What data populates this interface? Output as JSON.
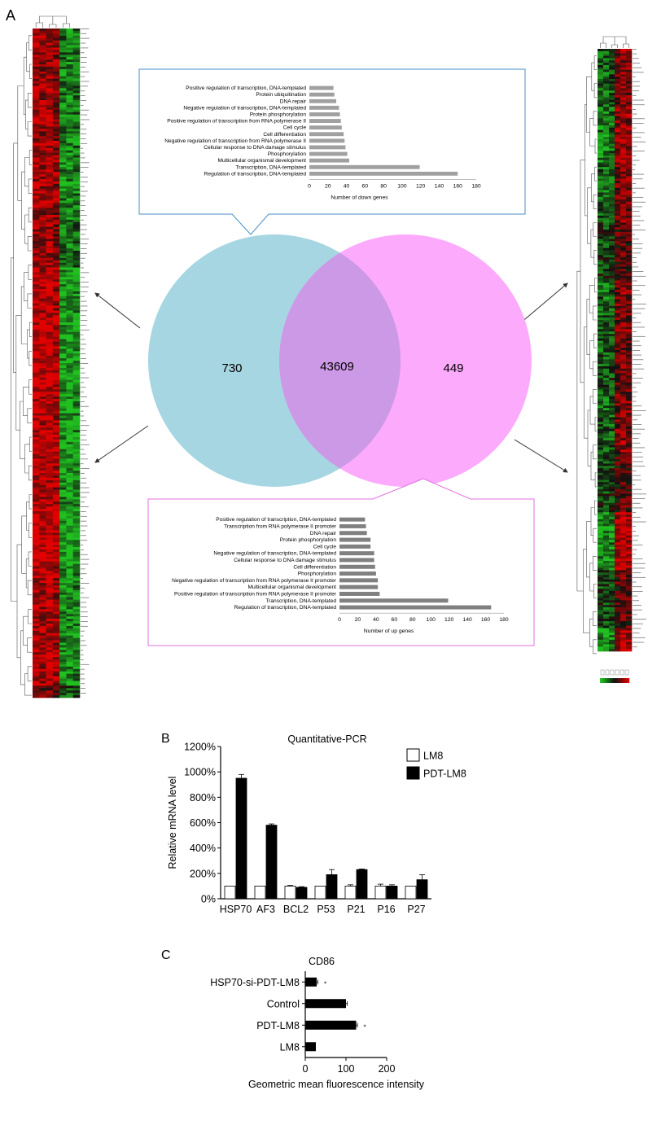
{
  "panels": {
    "a": "A",
    "b": "B",
    "c": "C"
  },
  "heatmap_colors": {
    "high": "#e00000",
    "low": "#20c020",
    "mid": "#101010"
  },
  "chart_data": [
    {
      "id": "venn",
      "type": "venn",
      "sets": [
        {
          "value": "730",
          "color": "#a6d6e2"
        },
        {
          "value": "449",
          "color": "#fcaafc"
        }
      ],
      "intersection": {
        "value": "43609",
        "color": "#cc99e6"
      }
    },
    {
      "id": "down-genes",
      "type": "bar",
      "orientation": "horizontal",
      "categories": [
        "Positive regulation of transcription, DNA-templated",
        "Protein ubiquitination",
        "DNA repair",
        "Negative regulation of transcription, DNA-templated",
        "Protein phosphorylation",
        "Positive regulation of transcription from RNA polymerase II",
        "Cell cycle",
        "Cell differentiation",
        "Negative regulation of transcription from RNA polymerase II",
        "Cellular response to DNA damage stimulus",
        "Phosphorylation",
        "Multicellular organismal development",
        "Transcription, DNA-templated",
        "Regulation of transcription, DNA-templated"
      ],
      "values": [
        26,
        27,
        29,
        32,
        33,
        34,
        35,
        37,
        38,
        39,
        41,
        43,
        119,
        160
      ],
      "xlabel": "Number of down genes",
      "xlim": [
        0,
        180
      ],
      "xticks": [
        0,
        20,
        40,
        60,
        80,
        100,
        120,
        140,
        160,
        180
      ],
      "bar_color": "#a0a0a0",
      "border_color": "#4a8fc8"
    },
    {
      "id": "up-genes",
      "type": "bar",
      "orientation": "horizontal",
      "categories": [
        "Positive regulation of transcription, DNA-templated",
        "Transcription from RNA polymerase II promoter",
        "DNA repair",
        "Protein phosphorylation",
        "Cell cycle",
        "Negative regulation of transcription, DNA-templated",
        "Cellular response to DNA damage stimulus",
        "Cell differentiation",
        "Phosphorylation",
        "Negative regulation of transcription from RNA polymerase II promoter",
        "Multicellular organismal development",
        "Positive regulation of transcription from RNA polymerase II promoter",
        "Transcription, DNA-templated",
        "Regulation of transcription, DNA-templated"
      ],
      "values": [
        28,
        29,
        30,
        34,
        34,
        38,
        38,
        39,
        40,
        42,
        42,
        44,
        119,
        166
      ],
      "xlabel": "Number of up genes",
      "xlim": [
        0,
        180
      ],
      "xticks": [
        0,
        20,
        40,
        60,
        80,
        100,
        120,
        140,
        160,
        180
      ],
      "bar_color": "#808080",
      "border_color": "#e070e0"
    },
    {
      "id": "qpcr",
      "type": "bar",
      "title": "Quantitative-PCR",
      "ylabel": "Relative mRNA level",
      "categories": [
        "HSP70",
        "AF3",
        "BCL2",
        "P53",
        "P21",
        "P16",
        "P27"
      ],
      "ylim": [
        0,
        1200
      ],
      "yticks": [
        "0%",
        "200%",
        "400%",
        "600%",
        "800%",
        "1000%",
        "1200%"
      ],
      "legend_position": "top-right",
      "series": [
        {
          "name": "LM8",
          "color": "#ffffff",
          "values": [
            100,
            100,
            100,
            100,
            100,
            100,
            100
          ],
          "errors": [
            0,
            0,
            5,
            0,
            10,
            15,
            0
          ]
        },
        {
          "name": "PDT-LM8",
          "color": "#000000",
          "values": [
            950,
            580,
            90,
            190,
            230,
            100,
            150
          ],
          "errors": [
            30,
            10,
            5,
            40,
            5,
            10,
            40
          ]
        }
      ]
    },
    {
      "id": "cd86",
      "type": "bar",
      "orientation": "horizontal",
      "title": "CD86",
      "categories": [
        "HSP70-si-PDT-LM8",
        "Control",
        "PDT-LM8",
        "LM8"
      ],
      "values": [
        28,
        100,
        125,
        26
      ],
      "errors": [
        3,
        3,
        3,
        0
      ],
      "significance": [
        "*",
        "",
        "*",
        ""
      ],
      "xlabel": "Geometric mean fluorescence intensity",
      "xlim": [
        0,
        200
      ],
      "xticks": [
        0,
        100,
        200
      ]
    }
  ]
}
